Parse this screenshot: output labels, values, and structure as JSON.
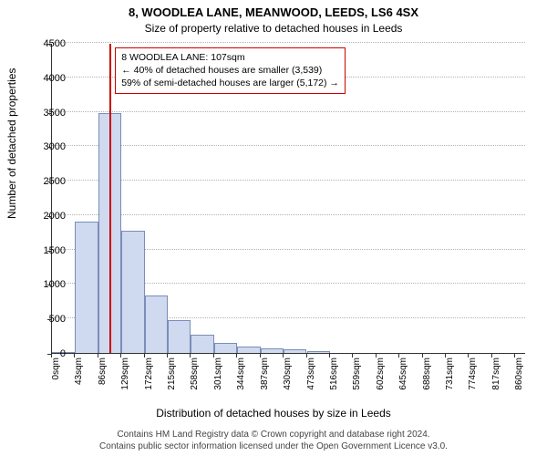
{
  "title": "8, WOODLEA LANE, MEANWOOD, LEEDS, LS6 4SX",
  "subtitle": "Size of property relative to detached houses in Leeds",
  "ylabel": "Number of detached properties",
  "xlabel": "Distribution of detached houses by size in Leeds",
  "chart": {
    "type": "histogram",
    "bar_fill": "#cfd9ef",
    "bar_stroke": "#7b8db8",
    "marker_color": "#cc0000",
    "grid_color": "#808080",
    "background_color": "#ffffff",
    "xlim": [
      0,
      880
    ],
    "ylim": [
      0,
      4500
    ],
    "ytick_step": 500,
    "yticks": [
      0,
      500,
      1000,
      1500,
      2000,
      2500,
      3000,
      3500,
      4000,
      4500
    ],
    "bin_width_sqm": 43,
    "xticks": [
      0,
      43,
      86,
      129,
      172,
      215,
      258,
      301,
      344,
      387,
      430,
      473,
      516,
      559,
      602,
      645,
      688,
      731,
      774,
      817,
      860
    ],
    "xtick_labels": [
      "0sqm",
      "43sqm",
      "86sqm",
      "129sqm",
      "172sqm",
      "215sqm",
      "258sqm",
      "301sqm",
      "344sqm",
      "387sqm",
      "430sqm",
      "473sqm",
      "516sqm",
      "559sqm",
      "602sqm",
      "645sqm",
      "688sqm",
      "731sqm",
      "774sqm",
      "817sqm",
      "860sqm"
    ],
    "bars": [
      {
        "x0": 0,
        "x1": 43,
        "value": 20
      },
      {
        "x0": 43,
        "x1": 86,
        "value": 1900
      },
      {
        "x0": 86,
        "x1": 129,
        "value": 3480
      },
      {
        "x0": 129,
        "x1": 172,
        "value": 1780
      },
      {
        "x0": 172,
        "x1": 215,
        "value": 830
      },
      {
        "x0": 215,
        "x1": 258,
        "value": 480
      },
      {
        "x0": 258,
        "x1": 301,
        "value": 270
      },
      {
        "x0": 301,
        "x1": 344,
        "value": 150
      },
      {
        "x0": 344,
        "x1": 387,
        "value": 95
      },
      {
        "x0": 387,
        "x1": 430,
        "value": 60
      },
      {
        "x0": 430,
        "x1": 473,
        "value": 50
      },
      {
        "x0": 473,
        "x1": 516,
        "value": 30
      }
    ],
    "marker_x": 107
  },
  "annotation": {
    "line1": "8 WOODLEA LANE: 107sqm",
    "line2": "← 40% of detached houses are smaller (3,539)",
    "line3": "59% of semi-detached houses are larger (5,172) →"
  },
  "footer": {
    "line1": "Contains HM Land Registry data © Crown copyright and database right 2024.",
    "line2": "Contains public sector information licensed under the Open Government Licence v3.0."
  }
}
